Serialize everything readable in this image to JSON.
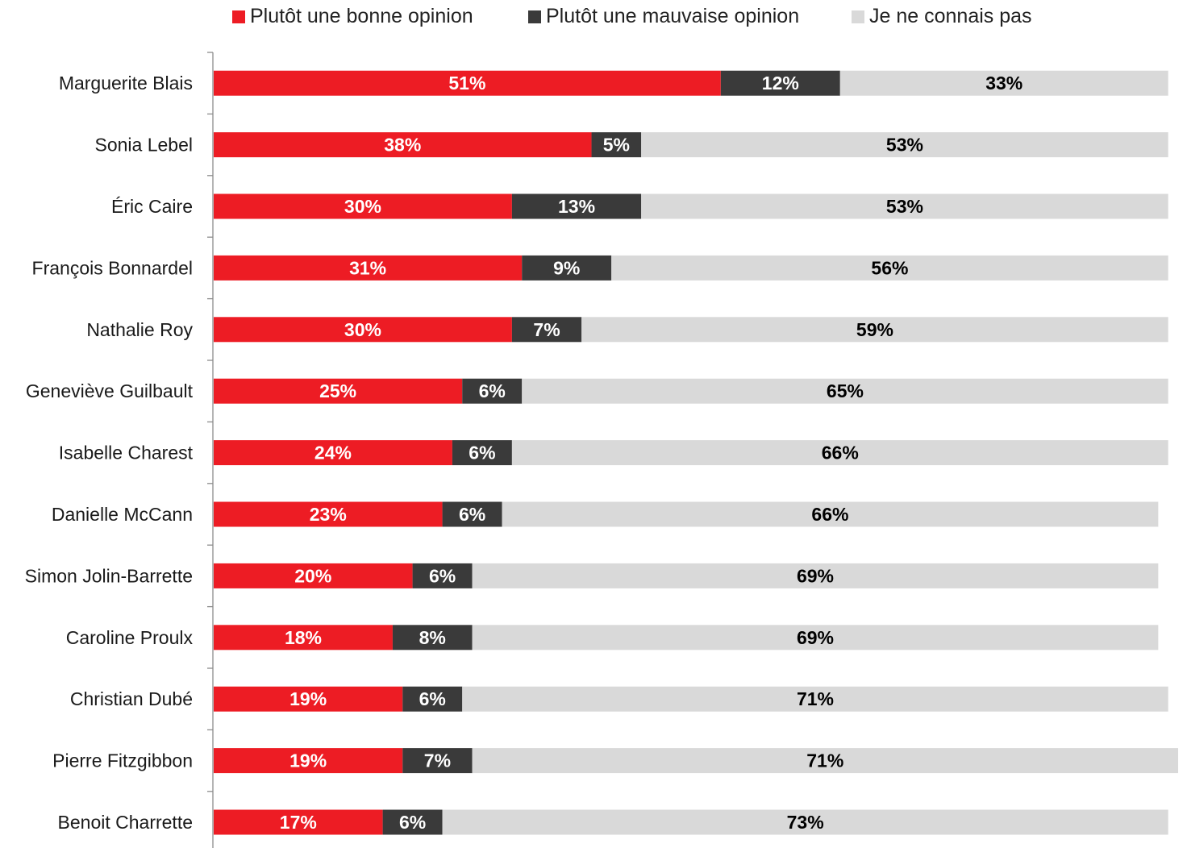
{
  "chart_data": {
    "type": "bar",
    "orientation": "horizontal",
    "stacked": true,
    "legend_position": "top",
    "categories": [
      "Marguerite Blais",
      "Sonia Lebel",
      "Éric Caire",
      "François Bonnardel",
      "Nathalie Roy",
      "Geneviève Guilbault",
      "Isabelle Charest",
      "Danielle McCann",
      "Simon Jolin-Barrette",
      "Caroline Proulx",
      "Christian Dubé",
      "Pierre Fitzgibbon",
      "Benoit Charrette"
    ],
    "series": [
      {
        "name": "Plutôt une bonne opinion",
        "color": "#ed1c24",
        "label_color": "#ffffff",
        "values": [
          51,
          38,
          30,
          31,
          30,
          25,
          24,
          23,
          20,
          18,
          19,
          19,
          17
        ]
      },
      {
        "name": "Plutôt une mauvaise opinion",
        "color": "#3a3a3a",
        "label_color": "#ffffff",
        "values": [
          12,
          5,
          13,
          9,
          7,
          6,
          6,
          6,
          6,
          8,
          6,
          7,
          6
        ]
      },
      {
        "name": "Je ne connais pas",
        "color": "#d9d9d9",
        "label_color": "#000000",
        "values": [
          33,
          53,
          53,
          56,
          59,
          65,
          66,
          66,
          69,
          69,
          71,
          71,
          73
        ]
      }
    ],
    "value_suffix": "%",
    "grid": false,
    "xlim": [
      0,
      96
    ]
  }
}
